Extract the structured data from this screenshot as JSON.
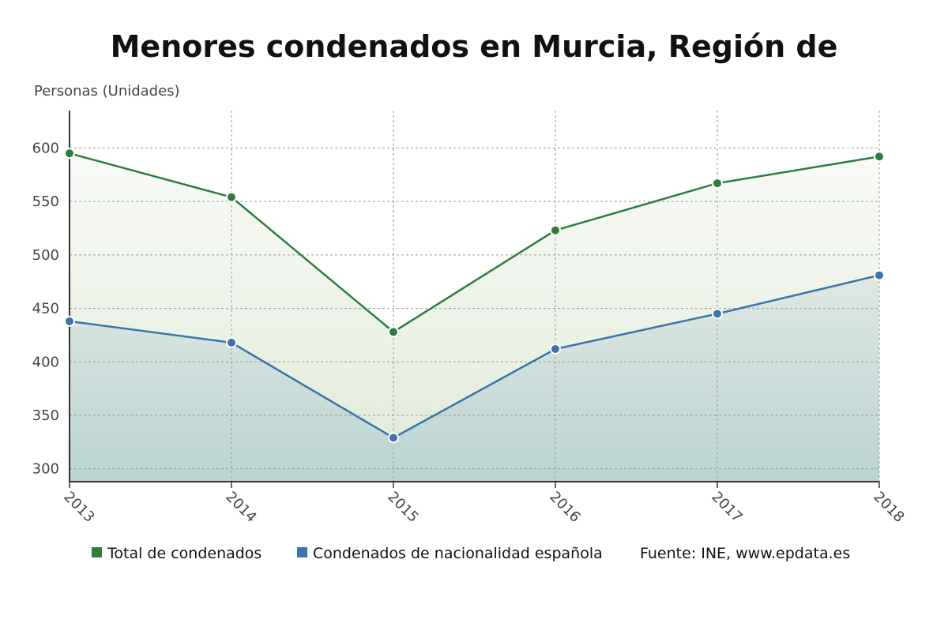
{
  "chart_data": {
    "type": "area",
    "title": "Menores condenados en Murcia, Región de",
    "ylabel": "Personas (Unidades)",
    "x": [
      "2013",
      "2014",
      "2015",
      "2016",
      "2017",
      "2018"
    ],
    "yticks": [
      300,
      350,
      400,
      450,
      500,
      550,
      600
    ],
    "ylim": [
      288,
      635
    ],
    "grid": true,
    "legend_position": "bottom",
    "series": [
      {
        "name": "Total de condenados",
        "values": [
          595,
          554,
          428,
          523,
          567,
          592
        ],
        "color": "#2e7d3e"
      },
      {
        "name": "Condenados de nacionalidad española",
        "values": [
          438,
          418,
          329,
          412,
          445,
          481
        ],
        "color": "#3a74a8"
      }
    ],
    "source": "Fuente: INE, www.epdata.es"
  }
}
